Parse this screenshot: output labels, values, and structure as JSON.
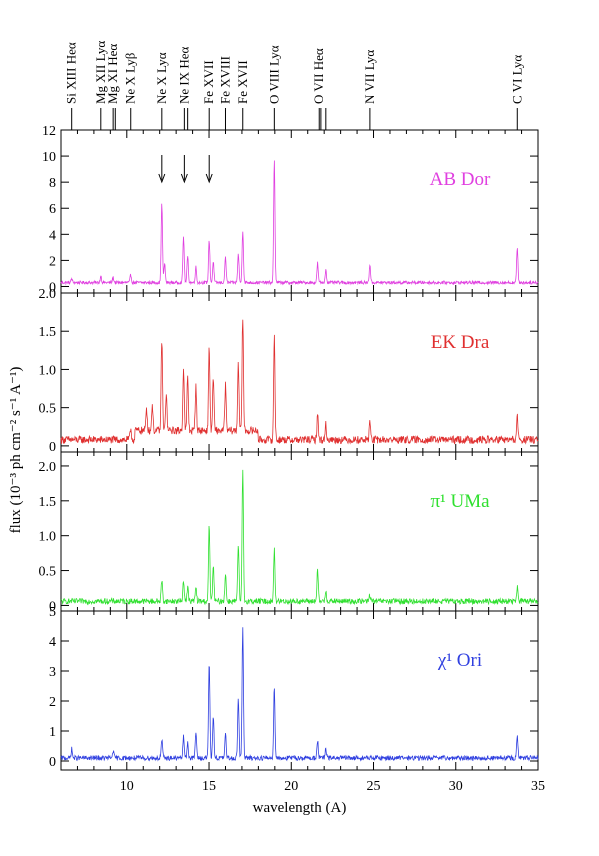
{
  "chart_data": {
    "type": "line",
    "xlabel": "wavelength (A)",
    "ylabel": "flux (10⁻³ ph cm⁻² s⁻¹ A⁻¹)",
    "xlim": [
      6,
      35
    ],
    "x_ticks": [
      10,
      15,
      20,
      25,
      30,
      35
    ],
    "line_markers": [
      {
        "label": "Si XIII Heα",
        "x": 6.65
      },
      {
        "label": "Mg XII Lyα",
        "x": 8.42
      },
      {
        "label": "Mg XI Heα",
        "x": 9.17
      },
      {
        "label": "Ne X Lyβ",
        "x": 10.24
      },
      {
        "label": "Ne X Lyα",
        "x": 12.13
      },
      {
        "label": "Ne IX Heα",
        "x": 13.5
      },
      {
        "label": "Fe XVII",
        "x": 15.01
      },
      {
        "label": "Fe XVIII",
        "x": 16.0
      },
      {
        "label": "Fe XVII",
        "x": 17.05
      },
      {
        "label": "O VIII Lyα",
        "x": 18.97
      },
      {
        "label": "O VII Heα",
        "x": 21.7
      },
      {
        "label": "N VII Lyα",
        "x": 24.78
      },
      {
        "label": "C VI Lyα",
        "x": 33.74
      }
    ],
    "panel_arrows_x": [
      12.13,
      13.5,
      15.01
    ],
    "panels": [
      {
        "name": "AB Dor",
        "color": "#e040e0",
        "ylim": [
          -0.5,
          12
        ],
        "yticks": [
          0,
          2,
          4,
          6,
          8,
          10,
          12
        ],
        "baseline": 0.3,
        "noise": 0.12,
        "lines": [
          [
            6.65,
            0.3
          ],
          [
            8.42,
            0.5
          ],
          [
            9.17,
            0.4
          ],
          [
            10.24,
            0.6
          ],
          [
            12.13,
            6.0
          ],
          [
            12.3,
            1.5
          ],
          [
            13.45,
            3.5
          ],
          [
            13.7,
            2.0
          ],
          [
            14.2,
            1.2
          ],
          [
            15.01,
            3.3
          ],
          [
            15.26,
            1.6
          ],
          [
            16.0,
            2.0
          ],
          [
            16.78,
            2.2
          ],
          [
            17.05,
            4.0
          ],
          [
            18.97,
            9.5
          ],
          [
            21.6,
            1.5
          ],
          [
            22.1,
            1.0
          ],
          [
            24.78,
            1.4
          ],
          [
            33.74,
            2.6
          ]
        ]
      },
      {
        "name": "EK Dra",
        "color": "#e03030",
        "ylim": [
          -0.08,
          2.0
        ],
        "yticks": [
          0,
          0.5,
          1.0,
          1.5,
          2.0
        ],
        "baseline": 0.08,
        "noise": 0.05,
        "lines": [
          [
            10.24,
            0.15
          ],
          [
            11.2,
            0.3
          ],
          [
            11.55,
            0.35
          ],
          [
            12.13,
            1.2
          ],
          [
            12.4,
            0.5
          ],
          [
            13.45,
            0.82
          ],
          [
            13.7,
            0.7
          ],
          [
            14.2,
            0.6
          ],
          [
            15.01,
            1.1
          ],
          [
            15.26,
            0.7
          ],
          [
            16.0,
            0.6
          ],
          [
            16.78,
            0.9
          ],
          [
            17.05,
            1.5
          ],
          [
            18.97,
            1.38
          ],
          [
            21.6,
            0.35
          ],
          [
            22.1,
            0.2
          ],
          [
            24.78,
            0.25
          ],
          [
            33.74,
            0.3
          ]
        ]
      },
      {
        "name": "π¹ UMa",
        "color": "#30e030",
        "ylim": [
          -0.08,
          2.2
        ],
        "yticks": [
          0,
          0.5,
          1.0,
          1.5,
          2.0
        ],
        "baseline": 0.06,
        "noise": 0.04,
        "lines": [
          [
            12.13,
            0.3
          ],
          [
            13.45,
            0.3
          ],
          [
            13.7,
            0.2
          ],
          [
            14.2,
            0.2
          ],
          [
            15.01,
            1.08
          ],
          [
            15.26,
            0.5
          ],
          [
            16.0,
            0.4
          ],
          [
            16.78,
            0.8
          ],
          [
            17.05,
            1.85
          ],
          [
            18.97,
            0.75
          ],
          [
            21.6,
            0.45
          ],
          [
            22.1,
            0.15
          ],
          [
            24.78,
            0.1
          ],
          [
            33.74,
            0.2
          ]
        ]
      },
      {
        "name": "χ¹ Ori",
        "color": "#3040e0",
        "ylim": [
          -0.3,
          5
        ],
        "yticks": [
          0,
          1,
          2,
          3,
          4,
          5
        ],
        "baseline": 0.1,
        "noise": 0.08,
        "lines": [
          [
            6.65,
            0.3
          ],
          [
            9.17,
            0.25
          ],
          [
            12.13,
            0.6
          ],
          [
            13.45,
            0.7
          ],
          [
            13.7,
            0.5
          ],
          [
            14.2,
            0.9
          ],
          [
            15.01,
            3.2
          ],
          [
            15.26,
            1.4
          ],
          [
            16.0,
            0.8
          ],
          [
            16.78,
            2.0
          ],
          [
            17.05,
            4.3
          ],
          [
            18.97,
            2.4
          ],
          [
            21.6,
            0.6
          ],
          [
            22.1,
            0.3
          ],
          [
            33.74,
            0.7
          ]
        ]
      }
    ]
  }
}
